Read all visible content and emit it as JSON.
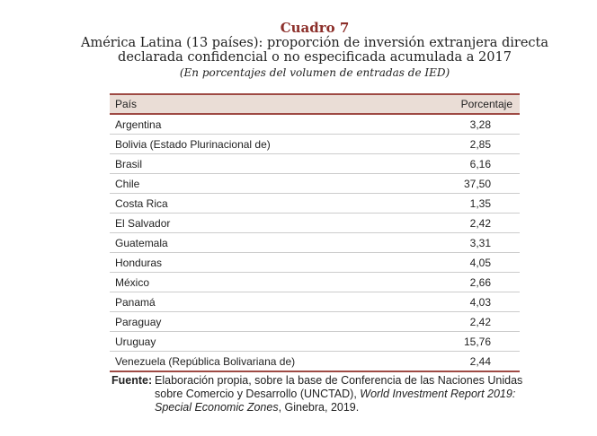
{
  "header": {
    "label": "Cuadro 7",
    "title_line1": "América Latina (13 países): proporción de inversión extranjera directa",
    "title_line2": "declarada confidencial o no especificada acumulada a 2017",
    "subtitle": "(En porcentajes del volumen de entradas de IED)"
  },
  "table": {
    "columns": [
      "País",
      "Porcentaje"
    ],
    "rows": [
      [
        "Argentina",
        "3,28"
      ],
      [
        "Bolivia (Estado Plurinacional de)",
        "2,85"
      ],
      [
        "Brasil",
        "6,16"
      ],
      [
        "Chile",
        "37,50"
      ],
      [
        "Costa Rica",
        "1,35"
      ],
      [
        "El Salvador",
        "2,42"
      ],
      [
        "Guatemala",
        "3,31"
      ],
      [
        "Honduras",
        "4,05"
      ],
      [
        "México",
        "2,66"
      ],
      [
        "Panamá",
        "4,03"
      ],
      [
        "Paraguay",
        "2,42"
      ],
      [
        "Uruguay",
        "15,76"
      ],
      [
        "Venezuela (República Bolivariana de)",
        "2,44"
      ]
    ]
  },
  "source": {
    "label": "Fuente:",
    "text1": "Elaboración propia, sobre la base de Conferencia de las Naciones Unidas sobre Comercio y Desarrollo (UNCTAD), ",
    "italic1": "World Investment Report 2019: Special Economic Zones",
    "text2": ", Ginebra, 2019."
  }
}
